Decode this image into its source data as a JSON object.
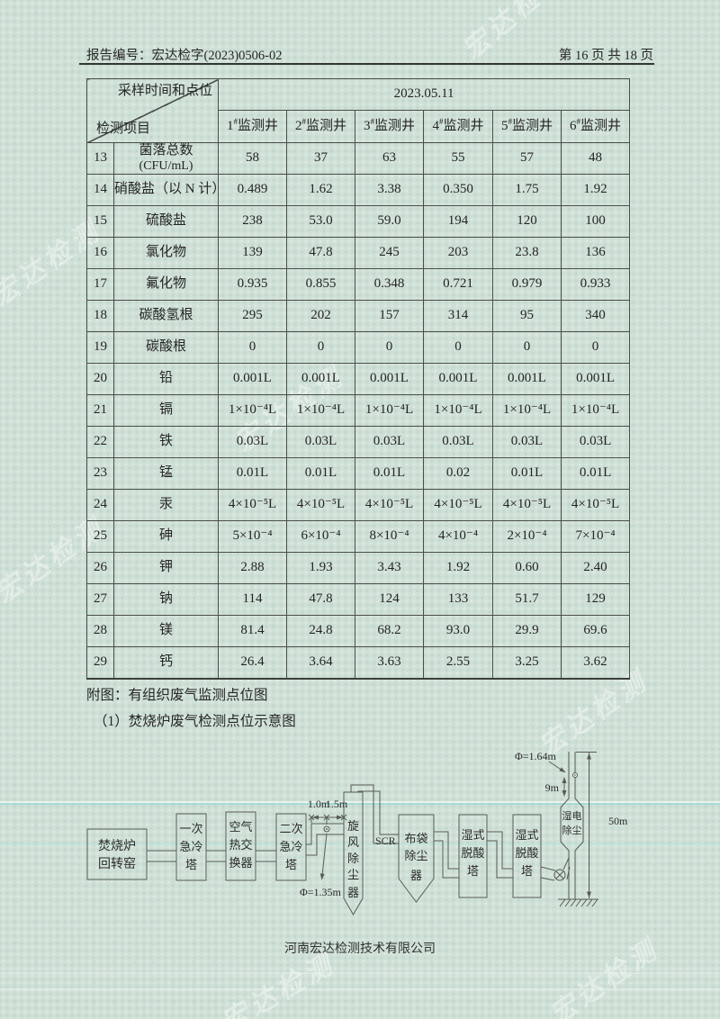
{
  "page": {
    "report_label": "报告编号：宏达检字(2023)0506-02",
    "page_label": "第 16 页 共 18 页",
    "attachment_title": "附图：有组织废气监测点位图",
    "figure_title": "（1）焚烧炉废气检测点位示意图",
    "footer": "河南宏达检测技术有限公司",
    "watermark": "宏达检测"
  },
  "table": {
    "corner_top": "采样时间和点位",
    "corner_bottom": "检测项目",
    "date_header": "2023.05.11",
    "well_headers": [
      {
        "num": "1",
        "mark": "#",
        "name": "监测井"
      },
      {
        "num": "2",
        "mark": "#",
        "name": "监测井"
      },
      {
        "num": "3",
        "mark": "#",
        "name": "监测井"
      },
      {
        "num": "4",
        "mark": "#",
        "name": "监测井"
      },
      {
        "num": "5",
        "mark": "#",
        "name": "监测井"
      },
      {
        "num": "6",
        "mark": "#",
        "name": "监测井"
      }
    ],
    "rows": [
      {
        "no": "13",
        "item": "菌落总数",
        "item_sub": "(CFU/mL)",
        "values": [
          "58",
          "37",
          "63",
          "55",
          "57",
          "48"
        ]
      },
      {
        "no": "14",
        "item": "硝酸盐（以 N 计）",
        "values": [
          "0.489",
          "1.62",
          "3.38",
          "0.350",
          "1.75",
          "1.92"
        ]
      },
      {
        "no": "15",
        "item": "硫酸盐",
        "values": [
          "238",
          "53.0",
          "59.0",
          "194",
          "120",
          "100"
        ]
      },
      {
        "no": "16",
        "item": "氯化物",
        "values": [
          "139",
          "47.8",
          "245",
          "203",
          "23.8",
          "136"
        ]
      },
      {
        "no": "17",
        "item": "氟化物",
        "values": [
          "0.935",
          "0.855",
          "0.348",
          "0.721",
          "0.979",
          "0.933"
        ]
      },
      {
        "no": "18",
        "item": "碳酸氢根",
        "values": [
          "295",
          "202",
          "157",
          "314",
          "95",
          "340"
        ]
      },
      {
        "no": "19",
        "item": "碳酸根",
        "values": [
          "0",
          "0",
          "0",
          "0",
          "0",
          "0"
        ]
      },
      {
        "no": "20",
        "item": "铅",
        "values": [
          "0.001L",
          "0.001L",
          "0.001L",
          "0.001L",
          "0.001L",
          "0.001L"
        ]
      },
      {
        "no": "21",
        "item": "镉",
        "values": [
          "1×10⁻⁴L",
          "1×10⁻⁴L",
          "1×10⁻⁴L",
          "1×10⁻⁴L",
          "1×10⁻⁴L",
          "1×10⁻⁴L"
        ]
      },
      {
        "no": "22",
        "item": "铁",
        "values": [
          "0.03L",
          "0.03L",
          "0.03L",
          "0.03L",
          "0.03L",
          "0.03L"
        ]
      },
      {
        "no": "23",
        "item": "锰",
        "values": [
          "0.01L",
          "0.01L",
          "0.01L",
          "0.02",
          "0.01L",
          "0.01L"
        ]
      },
      {
        "no": "24",
        "item": "汞",
        "values": [
          "4×10⁻⁵L",
          "4×10⁻⁵L",
          "4×10⁻⁵L",
          "4×10⁻⁵L",
          "4×10⁻⁵L",
          "4×10⁻⁵L"
        ]
      },
      {
        "no": "25",
        "item": "砷",
        "values": [
          "5×10⁻⁴",
          "6×10⁻⁴",
          "8×10⁻⁴",
          "4×10⁻⁴",
          "2×10⁻⁴",
          "7×10⁻⁴"
        ]
      },
      {
        "no": "26",
        "item": "钾",
        "values": [
          "2.88",
          "1.93",
          "3.43",
          "1.92",
          "0.60",
          "2.40"
        ]
      },
      {
        "no": "27",
        "item": "钠",
        "values": [
          "114",
          "47.8",
          "124",
          "133",
          "51.7",
          "129"
        ]
      },
      {
        "no": "28",
        "item": "镁",
        "values": [
          "81.4",
          "24.8",
          "68.2",
          "93.0",
          "29.9",
          "69.6"
        ]
      },
      {
        "no": "29",
        "item": "钙",
        "values": [
          "26.4",
          "3.64",
          "3.63",
          "2.55",
          "3.25",
          "3.62"
        ]
      }
    ]
  },
  "diagram": {
    "boxes": {
      "incinerator": [
        "焚烧炉",
        "回转窑"
      ],
      "quench1": [
        "一次",
        "急冷",
        "塔"
      ],
      "heat_exchanger": [
        "空气",
        "热交",
        "换器"
      ],
      "quench2": [
        "二次",
        "急冷",
        "塔"
      ],
      "cyclone": [
        "旋",
        "风",
        "除",
        "尘",
        "器"
      ],
      "bag_filter": [
        "布袋",
        "除尘",
        "器"
      ],
      "scrubber1": [
        "湿式",
        "脱酸",
        "塔"
      ],
      "scrubber2": [
        "湿式",
        "脱酸",
        "塔"
      ],
      "wet_esp": [
        "湿电",
        "除尘"
      ]
    },
    "labels": {
      "scr": "SCR",
      "dim_a": "1.0m",
      "dim_b": "1.5m",
      "duct_diameter": "Φ=1.35m",
      "stack_diameter": "Φ=1.64m",
      "port_height": "9m",
      "stack_height": "50m"
    }
  }
}
